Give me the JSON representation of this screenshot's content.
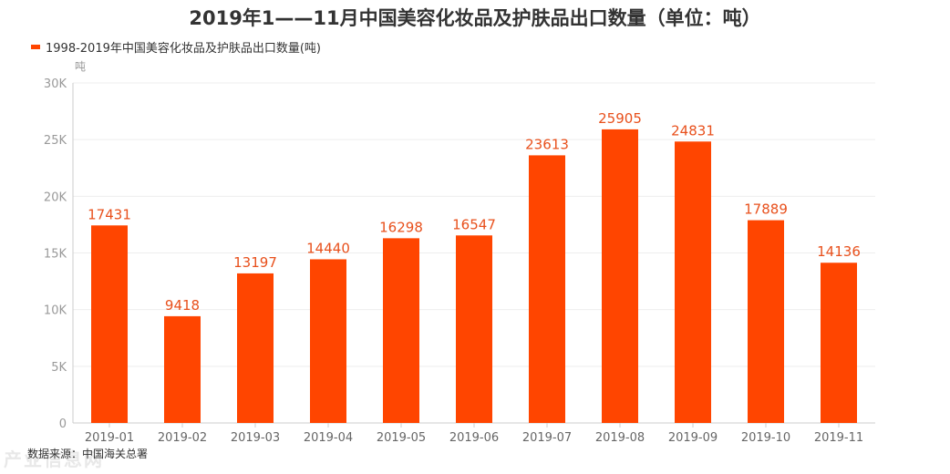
{
  "chart_data": {
    "type": "bar",
    "title": "2019年1——11月中国美容化妆品及护肤品出口数量（单位：吨）",
    "legend": [
      "1998-2019年中国美容化妆品及护肤品出口数量(吨)"
    ],
    "ylabel": "吨",
    "xlabel": "",
    "categories": [
      "2019-01",
      "2019-02",
      "2019-03",
      "2019-04",
      "2019-05",
      "2019-06",
      "2019-07",
      "2019-08",
      "2019-09",
      "2019-10",
      "2019-11"
    ],
    "series": [
      {
        "name": "1998-2019年中国美容化妆品及护肤品出口数量(吨)",
        "values": [
          17431,
          9418,
          13197,
          14440,
          16298,
          16547,
          23613,
          25905,
          24831,
          17889,
          14136
        ]
      }
    ],
    "ylim": [
      0,
      30000
    ],
    "yticks": [
      0,
      5000,
      10000,
      15000,
      20000,
      25000,
      30000
    ],
    "ytick_labels": [
      "0",
      "5K",
      "10K",
      "15K",
      "20K",
      "25K",
      "30K"
    ],
    "grid": true,
    "legend_position": "top-left"
  },
  "colors": {
    "bar": "#ff4500",
    "label": "#e8501c",
    "grid": "#eeeeee",
    "axis_text": "#999999"
  },
  "source_note": "数据来源：中国海关总署",
  "watermark": "产业信息网"
}
